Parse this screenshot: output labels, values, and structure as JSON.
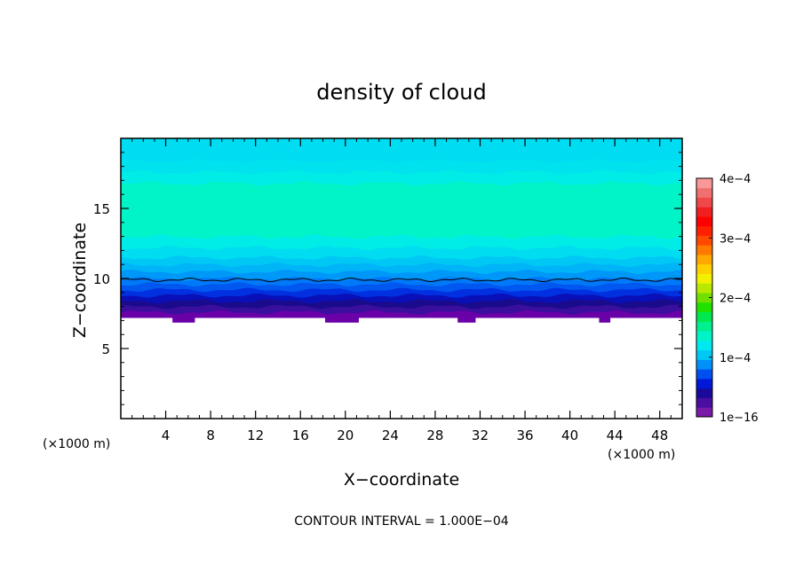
{
  "chart_data": {
    "type": "heatmap",
    "title": "density of cloud",
    "xlabel": "X−coordinate",
    "ylabel": "Z−coordinate",
    "x_unit_left": "(×1000 m)",
    "x_unit_right": "(×1000 m)",
    "footer": "CONTOUR INTERVAL = 1.000E−04",
    "xlim": [
      0,
      50
    ],
    "ylim": [
      0,
      20
    ],
    "x_ticks": [
      4,
      8,
      12,
      16,
      20,
      24,
      28,
      32,
      36,
      40,
      44,
      48
    ],
    "x_tick_labels": [
      "4",
      "8",
      "12",
      "16",
      "20",
      "24",
      "28",
      "32",
      "36",
      "40",
      "44",
      "48"
    ],
    "y_ticks": [
      5,
      10,
      15
    ],
    "y_tick_labels": [
      "5",
      "10",
      "15"
    ],
    "colorbar": {
      "range": [
        0,
        0.0004
      ],
      "tick_values": [
        0,
        0.0001,
        0.0002,
        0.0003,
        0.0004
      ],
      "tick_labels": [
        "1e−16",
        "1e−4",
        "2e−4",
        "3e−4",
        "4e−4"
      ]
    },
    "bands": [
      {
        "z0": 7.2,
        "z1": 7.6,
        "color": "#6a00a8"
      },
      {
        "z0": 7.6,
        "z1": 8.0,
        "color": "#3a0f9e"
      },
      {
        "z0": 8.0,
        "z1": 8.4,
        "color": "#1a0a8c"
      },
      {
        "z0": 8.4,
        "z1": 8.8,
        "color": "#0a10b8"
      },
      {
        "z0": 8.8,
        "z1": 9.2,
        "color": "#0030e0"
      },
      {
        "z0": 9.2,
        "z1": 9.6,
        "color": "#0058f0"
      },
      {
        "z0": 9.6,
        "z1": 10.0,
        "color": "#0078f8"
      },
      {
        "z0": 10.0,
        "z1": 10.5,
        "color": "#0098f8"
      },
      {
        "z0": 10.5,
        "z1": 11.0,
        "color": "#00b4f8"
      },
      {
        "z0": 11.0,
        "z1": 11.5,
        "color": "#00c8f4"
      },
      {
        "z0": 11.5,
        "z1": 12.2,
        "color": "#00dcf0"
      },
      {
        "z0": 12.2,
        "z1": 13.0,
        "color": "#00ece6"
      },
      {
        "z0": 13.0,
        "z1": 16.8,
        "color": "#00f4c8"
      },
      {
        "z0": 16.8,
        "z1": 17.6,
        "color": "#00ece6"
      },
      {
        "z0": 17.6,
        "z1": 18.4,
        "color": "#00e2ee"
      },
      {
        "z0": 18.4,
        "z1": 20.0,
        "color": "#00dcf2"
      }
    ],
    "contour_line_z": 9.9
  }
}
